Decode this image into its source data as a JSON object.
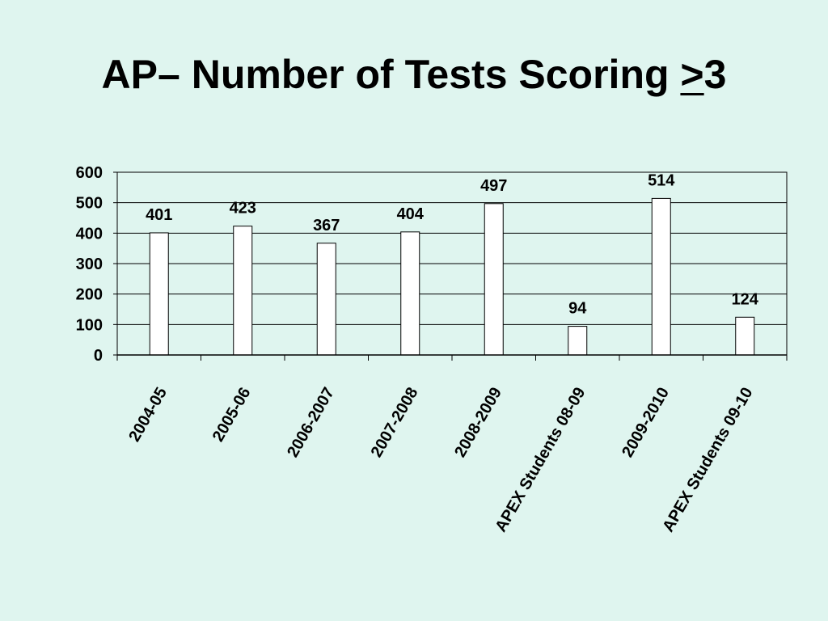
{
  "slide": {
    "title_prefix": "AP– Number of Tests Scoring ",
    "title_symbol": ">",
    "title_suffix": "3",
    "background_color": "#dff5ef"
  },
  "chart_data": {
    "type": "bar",
    "categories": [
      "2004-05",
      "2005-06",
      "2006-2007",
      "2007-2008",
      "2008-2009",
      "APEX Students 08-09",
      "2009-2010",
      "APEX Students 09-10"
    ],
    "values": [
      401,
      423,
      367,
      404,
      497,
      94,
      514,
      124
    ],
    "data_labels": [
      "401",
      "423",
      "367",
      "404",
      "497",
      "94",
      "514",
      "124"
    ],
    "yticks": [
      0,
      100,
      200,
      300,
      400,
      500,
      600
    ],
    "ylim": [
      0,
      600
    ],
    "grid": true,
    "legend": "none",
    "bar_color": "#ffffff",
    "bar_stroke": "#000000"
  }
}
